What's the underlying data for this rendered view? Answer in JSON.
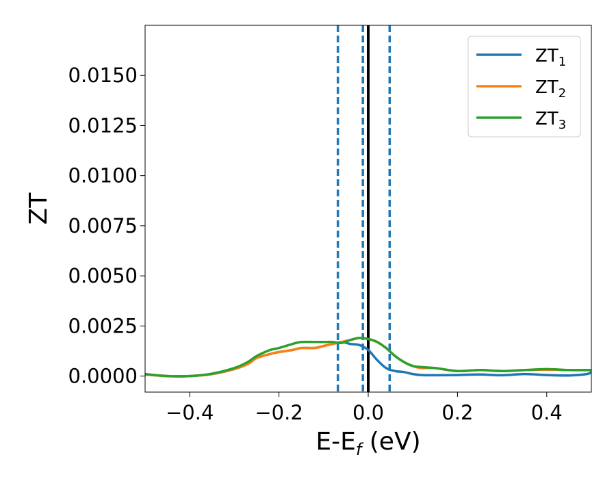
{
  "chart_data": {
    "type": "line",
    "title": "",
    "xlabel": {
      "main": "E-E",
      "sub": "f",
      "rest": " (eV)"
    },
    "ylabel": "ZT",
    "xlim": [
      -0.5,
      0.5
    ],
    "ylim": [
      -0.0008,
      0.0175
    ],
    "xticks": [
      -0.4,
      -0.2,
      0.0,
      0.2,
      0.4
    ],
    "xtick_labels": [
      "−0.4",
      "−0.2",
      "0.0",
      "0.2",
      "0.4"
    ],
    "yticks": [
      0.0,
      0.0025,
      0.005,
      0.0075,
      0.01,
      0.0125,
      0.015
    ],
    "ytick_labels": [
      "0.0000",
      "0.0025",
      "0.0050",
      "0.0075",
      "0.0100",
      "0.0125",
      "0.0150"
    ],
    "grid": false,
    "legend": "top-right",
    "vlines": [
      {
        "x": -0.068,
        "style": "dashed",
        "color": "#1f77b4"
      },
      {
        "x": -0.012,
        "style": "dashed",
        "color": "#1f77b4"
      },
      {
        "x": 0.048,
        "style": "dashed",
        "color": "#1f77b4"
      },
      {
        "x": 0.0,
        "style": "solid",
        "color": "#000000"
      }
    ],
    "series": [
      {
        "name": "ZT",
        "sub": "1",
        "color": "#1f77b4",
        "x": [
          -0.5,
          -0.45,
          -0.4,
          -0.35,
          -0.3,
          -0.27,
          -0.25,
          -0.22,
          -0.2,
          -0.17,
          -0.15,
          -0.12,
          -0.1,
          -0.08,
          -0.06,
          -0.04,
          -0.02,
          0.0,
          0.02,
          0.04,
          0.06,
          0.08,
          0.1,
          0.12,
          0.15,
          0.2,
          0.25,
          0.3,
          0.35,
          0.4,
          0.45,
          0.49,
          0.5
        ],
        "y": [
          8e-05,
          0.0,
          0.0,
          0.0001,
          0.00035,
          0.0006,
          0.0009,
          0.0011,
          0.0012,
          0.0013,
          0.0014,
          0.0014,
          0.0015,
          0.0016,
          0.0017,
          0.0016,
          0.00155,
          0.0013,
          0.0008,
          0.0004,
          0.00025,
          0.0002,
          0.0001,
          5e-05,
          4e-05,
          5e-05,
          8e-05,
          4e-05,
          0.0001,
          5e-05,
          3e-05,
          0.0001,
          0.0002
        ]
      },
      {
        "name": "ZT",
        "sub": "2",
        "color": "#ff7f0e",
        "x": [
          -0.5,
          -0.45,
          -0.4,
          -0.35,
          -0.3,
          -0.27,
          -0.25,
          -0.22,
          -0.2,
          -0.17,
          -0.15,
          -0.12,
          -0.1,
          -0.08,
          -0.06,
          -0.04,
          -0.02,
          0.0,
          0.02,
          0.04,
          0.06,
          0.08,
          0.1,
          0.12,
          0.15,
          0.2,
          0.25,
          0.3,
          0.35,
          0.4,
          0.45,
          0.5
        ],
        "y": [
          8e-05,
          0.0,
          0.0,
          0.0001,
          0.00035,
          0.0006,
          0.0009,
          0.0011,
          0.0012,
          0.0013,
          0.0014,
          0.0014,
          0.0015,
          0.0016,
          0.0017,
          0.0018,
          0.0019,
          0.00185,
          0.0017,
          0.0014,
          0.001,
          0.0007,
          0.0005,
          0.0004,
          0.0004,
          0.00025,
          0.0003,
          0.00025,
          0.0003,
          0.00032,
          0.0003,
          0.0003
        ]
      },
      {
        "name": "ZT",
        "sub": "3",
        "color": "#2ca02c",
        "x": [
          -0.5,
          -0.45,
          -0.4,
          -0.35,
          -0.3,
          -0.27,
          -0.25,
          -0.22,
          -0.2,
          -0.17,
          -0.15,
          -0.12,
          -0.1,
          -0.08,
          -0.06,
          -0.04,
          -0.02,
          0.0,
          0.02,
          0.04,
          0.06,
          0.08,
          0.1,
          0.12,
          0.15,
          0.2,
          0.25,
          0.3,
          0.35,
          0.4,
          0.45,
          0.5
        ],
        "y": [
          0.0001,
          0.0,
          0.0,
          0.00012,
          0.0004,
          0.0007,
          0.001,
          0.0013,
          0.0014,
          0.0016,
          0.0017,
          0.0017,
          0.0017,
          0.0017,
          0.00165,
          0.0018,
          0.0019,
          0.00185,
          0.0017,
          0.0014,
          0.001,
          0.0007,
          0.0005,
          0.00045,
          0.0004,
          0.00025,
          0.0003,
          0.00025,
          0.0003,
          0.00035,
          0.0003,
          0.0003
        ]
      }
    ]
  }
}
